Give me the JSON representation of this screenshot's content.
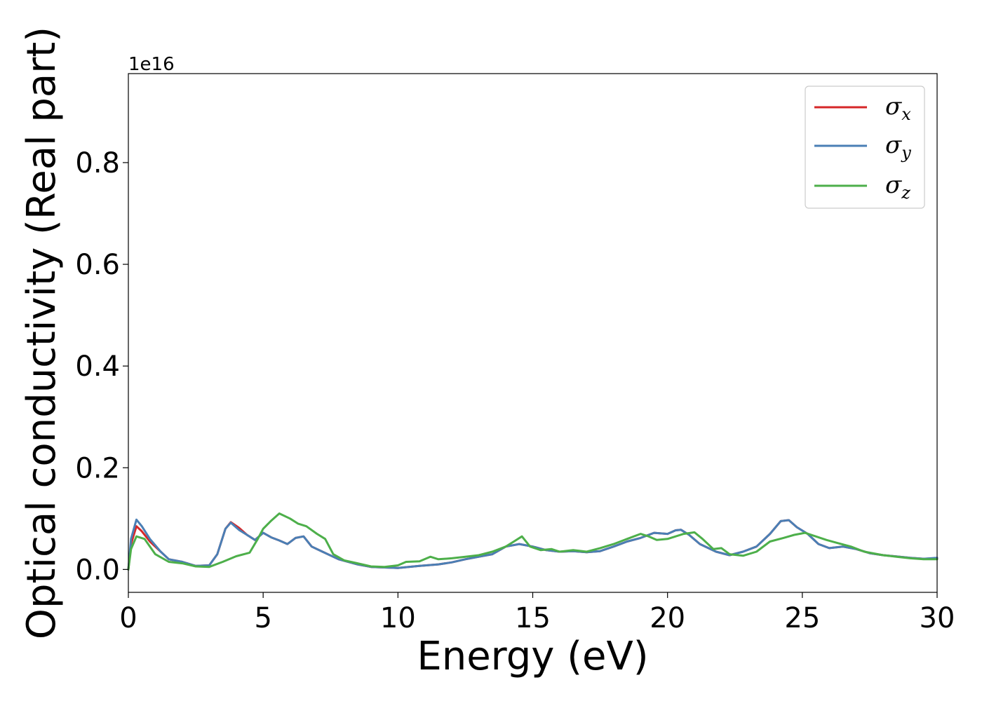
{
  "chart_data": {
    "type": "line",
    "title": "",
    "xlabel": "Energy (eV)",
    "ylabel": "Optical conductivity (Real part)",
    "y_offset_label": "1e16",
    "xlim": [
      0,
      30
    ],
    "ylim": [
      -0.045,
      0.975
    ],
    "xticks": [
      0,
      5,
      10,
      15,
      20,
      25,
      30
    ],
    "yticks": [
      0.0,
      0.2,
      0.4,
      0.6,
      0.8
    ],
    "xtick_labels": [
      "0",
      "5",
      "10",
      "15",
      "20",
      "25",
      "30"
    ],
    "ytick_labels": [
      "0.0",
      "0.2",
      "0.4",
      "0.6",
      "0.8"
    ],
    "grid": false,
    "legend_position": "top-right",
    "series": [
      {
        "name": "σx",
        "symbol": "σ",
        "subscript": "x",
        "color": "#d62728",
        "points": [
          [
            0,
            0
          ],
          [
            0.1,
            0.05
          ],
          [
            0.3,
            0.085
          ],
          [
            0.5,
            0.075
          ],
          [
            0.8,
            0.055
          ],
          [
            1.2,
            0.035
          ],
          [
            1.5,
            0.02
          ],
          [
            2,
            0.015
          ],
          [
            2.5,
            0.007
          ],
          [
            3,
            0.008
          ],
          [
            3.3,
            0.03
          ],
          [
            3.6,
            0.08
          ],
          [
            3.8,
            0.093
          ],
          [
            4.1,
            0.082
          ],
          [
            4.4,
            0.068
          ],
          [
            4.7,
            0.058
          ],
          [
            5,
            0.072
          ],
          [
            5.3,
            0.063
          ],
          [
            5.6,
            0.057
          ],
          [
            5.9,
            0.05
          ],
          [
            6.2,
            0.062
          ],
          [
            6.5,
            0.065
          ],
          [
            6.8,
            0.045
          ],
          [
            7.2,
            0.035
          ],
          [
            7.8,
            0.02
          ],
          [
            8.5,
            0.01
          ],
          [
            9,
            0.005
          ],
          [
            10,
            0.003
          ],
          [
            10.8,
            0.007
          ],
          [
            11.5,
            0.01
          ],
          [
            12,
            0.014
          ],
          [
            12.5,
            0.02
          ],
          [
            13,
            0.025
          ],
          [
            13.5,
            0.03
          ],
          [
            14,
            0.045
          ],
          [
            14.5,
            0.05
          ],
          [
            15,
            0.045
          ],
          [
            15.5,
            0.038
          ],
          [
            16,
            0.035
          ],
          [
            16.5,
            0.036
          ],
          [
            17,
            0.034
          ],
          [
            17.5,
            0.036
          ],
          [
            18,
            0.045
          ],
          [
            18.5,
            0.055
          ],
          [
            19,
            0.062
          ],
          [
            19.5,
            0.072
          ],
          [
            20,
            0.07
          ],
          [
            20.3,
            0.077
          ],
          [
            20.5,
            0.078
          ],
          [
            20.8,
            0.068
          ],
          [
            21.2,
            0.05
          ],
          [
            21.8,
            0.035
          ],
          [
            22.3,
            0.028
          ],
          [
            22.8,
            0.035
          ],
          [
            23.3,
            0.045
          ],
          [
            23.8,
            0.07
          ],
          [
            24.2,
            0.095
          ],
          [
            24.5,
            0.097
          ],
          [
            24.8,
            0.083
          ],
          [
            25.2,
            0.07
          ],
          [
            25.6,
            0.05
          ],
          [
            26,
            0.042
          ],
          [
            26.5,
            0.045
          ],
          [
            27,
            0.04
          ],
          [
            27.5,
            0.032
          ],
          [
            28,
            0.028
          ],
          [
            29,
            0.023
          ],
          [
            29.5,
            0.021
          ],
          [
            30,
            0.022
          ]
        ]
      },
      {
        "name": "σy",
        "symbol": "σ",
        "subscript": "y",
        "color": "#4a7fb5",
        "points": [
          [
            0,
            0
          ],
          [
            0.1,
            0.06
          ],
          [
            0.3,
            0.098
          ],
          [
            0.5,
            0.085
          ],
          [
            0.8,
            0.06
          ],
          [
            1.2,
            0.035
          ],
          [
            1.5,
            0.02
          ],
          [
            2,
            0.015
          ],
          [
            2.5,
            0.007
          ],
          [
            3,
            0.008
          ],
          [
            3.3,
            0.03
          ],
          [
            3.6,
            0.08
          ],
          [
            3.8,
            0.092
          ],
          [
            4.1,
            0.078
          ],
          [
            4.4,
            0.068
          ],
          [
            4.7,
            0.058
          ],
          [
            5,
            0.072
          ],
          [
            5.3,
            0.063
          ],
          [
            5.6,
            0.057
          ],
          [
            5.9,
            0.05
          ],
          [
            6.2,
            0.062
          ],
          [
            6.5,
            0.065
          ],
          [
            6.8,
            0.045
          ],
          [
            7.2,
            0.035
          ],
          [
            7.8,
            0.02
          ],
          [
            8.5,
            0.01
          ],
          [
            9,
            0.005
          ],
          [
            10,
            0.003
          ],
          [
            10.8,
            0.007
          ],
          [
            11.5,
            0.01
          ],
          [
            12,
            0.014
          ],
          [
            12.5,
            0.02
          ],
          [
            13,
            0.025
          ],
          [
            13.5,
            0.03
          ],
          [
            14,
            0.045
          ],
          [
            14.5,
            0.05
          ],
          [
            15,
            0.045
          ],
          [
            15.5,
            0.038
          ],
          [
            16,
            0.035
          ],
          [
            16.5,
            0.036
          ],
          [
            17,
            0.034
          ],
          [
            17.5,
            0.036
          ],
          [
            18,
            0.045
          ],
          [
            18.5,
            0.055
          ],
          [
            19,
            0.062
          ],
          [
            19.5,
            0.072
          ],
          [
            20,
            0.07
          ],
          [
            20.3,
            0.077
          ],
          [
            20.5,
            0.078
          ],
          [
            20.8,
            0.068
          ],
          [
            21.2,
            0.05
          ],
          [
            21.8,
            0.035
          ],
          [
            22.3,
            0.028
          ],
          [
            22.8,
            0.035
          ],
          [
            23.3,
            0.045
          ],
          [
            23.8,
            0.07
          ],
          [
            24.2,
            0.095
          ],
          [
            24.5,
            0.097
          ],
          [
            24.8,
            0.083
          ],
          [
            25.2,
            0.07
          ],
          [
            25.6,
            0.05
          ],
          [
            26,
            0.042
          ],
          [
            26.5,
            0.045
          ],
          [
            27,
            0.04
          ],
          [
            27.5,
            0.032
          ],
          [
            28,
            0.028
          ],
          [
            29,
            0.023
          ],
          [
            29.5,
            0.021
          ],
          [
            30,
            0.023
          ]
        ]
      },
      {
        "name": "σz",
        "symbol": "σ",
        "subscript": "z",
        "color": "#4daf4a",
        "points": [
          [
            0,
            0
          ],
          [
            0.1,
            0.04
          ],
          [
            0.3,
            0.065
          ],
          [
            0.6,
            0.06
          ],
          [
            1,
            0.03
          ],
          [
            1.5,
            0.015
          ],
          [
            2,
            0.012
          ],
          [
            2.5,
            0.006
          ],
          [
            3,
            0.005
          ],
          [
            3.5,
            0.015
          ],
          [
            4,
            0.026
          ],
          [
            4.5,
            0.033
          ],
          [
            4.8,
            0.06
          ],
          [
            5,
            0.08
          ],
          [
            5.3,
            0.096
          ],
          [
            5.6,
            0.11
          ],
          [
            6,
            0.1
          ],
          [
            6.3,
            0.09
          ],
          [
            6.6,
            0.085
          ],
          [
            7,
            0.07
          ],
          [
            7.3,
            0.06
          ],
          [
            7.6,
            0.03
          ],
          [
            8,
            0.018
          ],
          [
            8.5,
            0.012
          ],
          [
            9,
            0.006
          ],
          [
            9.5,
            0.005
          ],
          [
            10,
            0.008
          ],
          [
            10.3,
            0.015
          ],
          [
            10.8,
            0.016
          ],
          [
            11.2,
            0.025
          ],
          [
            11.5,
            0.02
          ],
          [
            12,
            0.022
          ],
          [
            12.5,
            0.025
          ],
          [
            13,
            0.028
          ],
          [
            13.5,
            0.035
          ],
          [
            14,
            0.045
          ],
          [
            14.3,
            0.055
          ],
          [
            14.6,
            0.065
          ],
          [
            14.9,
            0.045
          ],
          [
            15.3,
            0.038
          ],
          [
            15.7,
            0.04
          ],
          [
            16,
            0.035
          ],
          [
            16.5,
            0.038
          ],
          [
            17,
            0.035
          ],
          [
            17.5,
            0.042
          ],
          [
            18,
            0.05
          ],
          [
            18.5,
            0.06
          ],
          [
            19,
            0.07
          ],
          [
            19.3,
            0.065
          ],
          [
            19.6,
            0.058
          ],
          [
            20,
            0.06
          ],
          [
            20.3,
            0.065
          ],
          [
            20.6,
            0.07
          ],
          [
            21,
            0.073
          ],
          [
            21.3,
            0.06
          ],
          [
            21.7,
            0.04
          ],
          [
            22,
            0.042
          ],
          [
            22.3,
            0.03
          ],
          [
            22.8,
            0.027
          ],
          [
            23.3,
            0.035
          ],
          [
            23.8,
            0.055
          ],
          [
            24.3,
            0.062
          ],
          [
            24.7,
            0.068
          ],
          [
            25.1,
            0.072
          ],
          [
            25.5,
            0.065
          ],
          [
            25.9,
            0.058
          ],
          [
            26.3,
            0.052
          ],
          [
            26.8,
            0.045
          ],
          [
            27.3,
            0.035
          ],
          [
            28,
            0.028
          ],
          [
            28.5,
            0.025
          ],
          [
            29,
            0.022
          ],
          [
            29.5,
            0.02
          ],
          [
            30,
            0.02
          ]
        ]
      }
    ]
  }
}
